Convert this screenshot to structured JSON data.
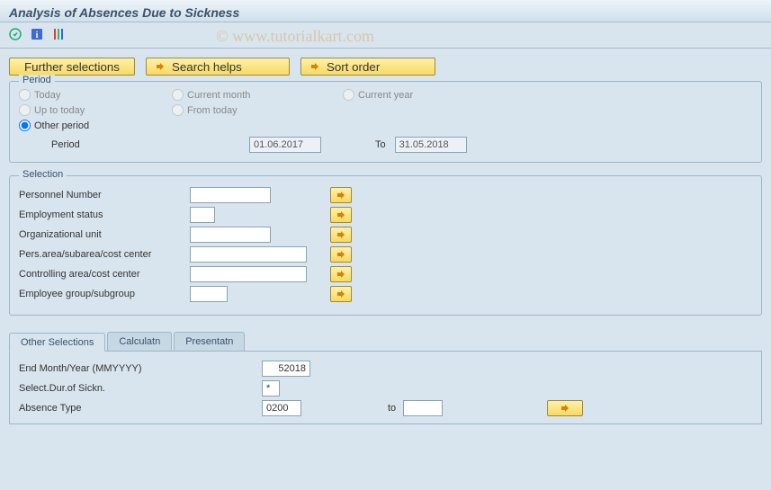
{
  "title": "Analysis of Absences Due to Sickness",
  "watermark": "© www.tutorialkart.com",
  "toolbar": {
    "further_selections": "Further selections",
    "search_helps": "Search helps",
    "sort_order": "Sort order"
  },
  "period_box": {
    "title": "Period",
    "radios": {
      "today": "Today",
      "current_month": "Current month",
      "current_year": "Current year",
      "up_to_today": "Up to today",
      "from_today": "From today",
      "other_period": "Other period"
    },
    "selected": "other_period",
    "period_label": "Period",
    "from_value": "01.06.2017",
    "to_label": "To",
    "to_value": "31.05.2018"
  },
  "selection_box": {
    "title": "Selection",
    "rows": [
      {
        "label": "Personnel Number",
        "width": 90
      },
      {
        "label": "Employment status",
        "width": 28
      },
      {
        "label": "Organizational unit",
        "width": 90
      },
      {
        "label": "Pers.area/subarea/cost center",
        "width": 130
      },
      {
        "label": "Controlling area/cost center",
        "width": 130
      },
      {
        "label": "Employee group/subgroup",
        "width": 42
      }
    ]
  },
  "tabs": {
    "items": [
      "Other Selections",
      "Calculatn",
      "Presentatn"
    ],
    "active": 0
  },
  "other_selections": {
    "end_month_label": "End Month/Year (MMYYYY)",
    "end_month_value": "52018",
    "dur_label": "Select.Dur.of Sickn.",
    "dur_value": "*",
    "abs_type_label": "Absence Type",
    "abs_type_from": "0200",
    "abs_to_label": "to",
    "abs_type_to": ""
  },
  "colors": {
    "bg": "#d8e5ee",
    "border": "#9fb6c8",
    "gold1": "#fff1a8",
    "gold2": "#f7d963",
    "arrow": "#d98200"
  }
}
